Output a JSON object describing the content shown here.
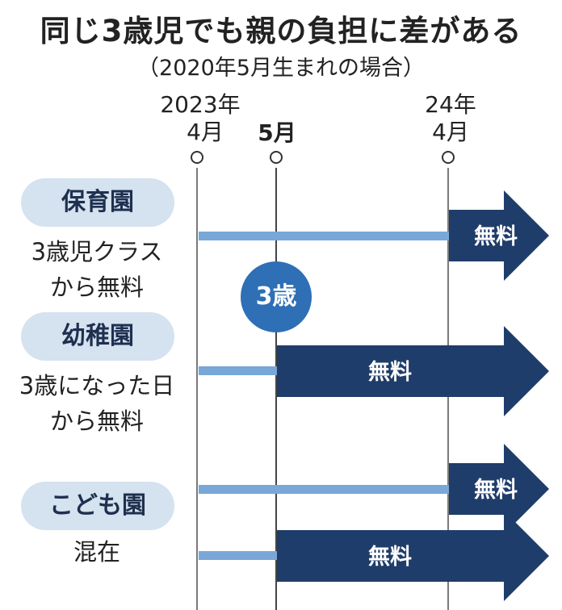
{
  "title": "同じ3歳児でも親の負担に差がある",
  "subtitle": "（2020年5月生まれの場合）",
  "timeline": {
    "start": [
      "2023年",
      "4月"
    ],
    "mid": "5月",
    "end": [
      "24年",
      "4月"
    ]
  },
  "age_badge": "3歳",
  "rows": [
    {
      "name": "保育園",
      "desc": [
        "3歳児クラス",
        "から無料"
      ],
      "free_label": "無料"
    },
    {
      "name": "幼稚園",
      "desc": [
        "3歳になった日",
        "から無料"
      ],
      "free_label": "無料"
    },
    {
      "name": "こども園",
      "desc": [
        "混在"
      ],
      "free_labels": [
        "無料",
        "無料"
      ]
    }
  ],
  "colors": {
    "bar": "#79a7d7",
    "arrow": "#1f3d6a",
    "pill": "#d5e2ef",
    "badge": "#2e6fb6"
  }
}
